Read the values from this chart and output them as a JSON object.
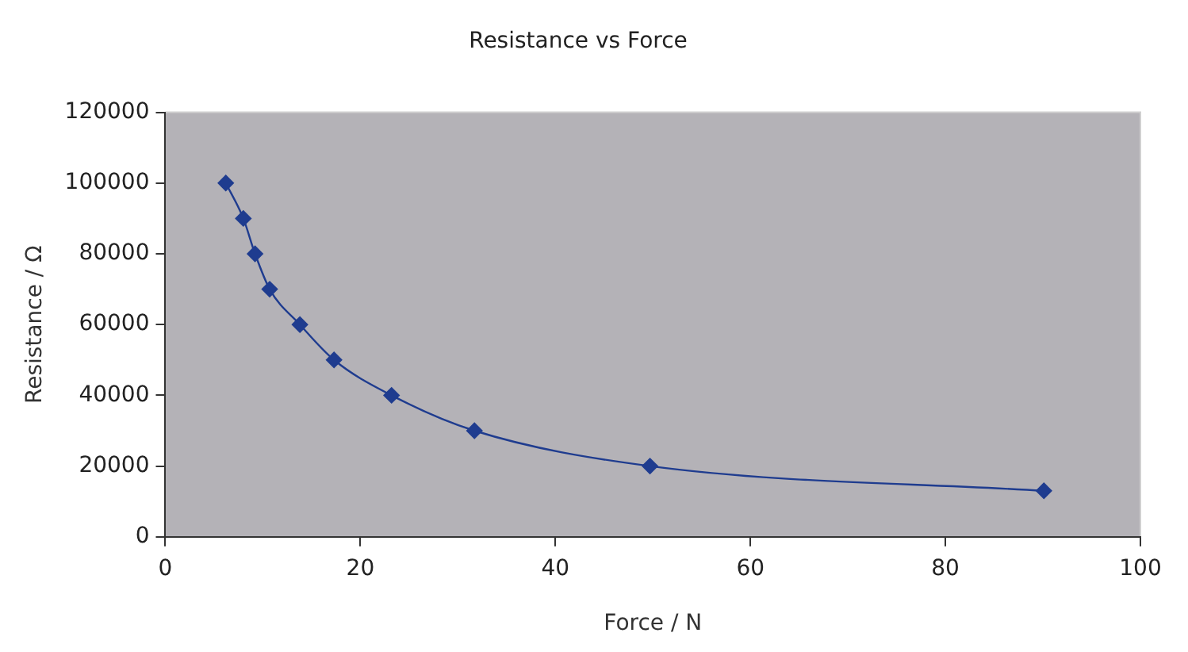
{
  "chart_data": {
    "type": "line",
    "title": "Resistance vs Force",
    "xlabel": "Force / N",
    "ylabel": "Resistance / Ω",
    "x": [
      6.2,
      8,
      9.2,
      10.7,
      13.8,
      17.3,
      23.2,
      31.7,
      49.7,
      90.1
    ],
    "series": [
      {
        "color": "#1f3c8f",
        "values": [
          100000,
          90000,
          80000,
          70000,
          60000,
          50000,
          40000,
          30000,
          20000,
          13000
        ]
      }
    ],
    "xlim": [
      0,
      100
    ],
    "xticks": [
      0,
      20,
      40,
      60,
      80,
      100
    ],
    "ylim": [
      0,
      120000
    ],
    "yticks": [
      0,
      20000,
      40000,
      60000,
      80000,
      100000,
      120000
    ],
    "grid": false,
    "legend": false,
    "marker": "diamond",
    "line_style": "solid"
  }
}
